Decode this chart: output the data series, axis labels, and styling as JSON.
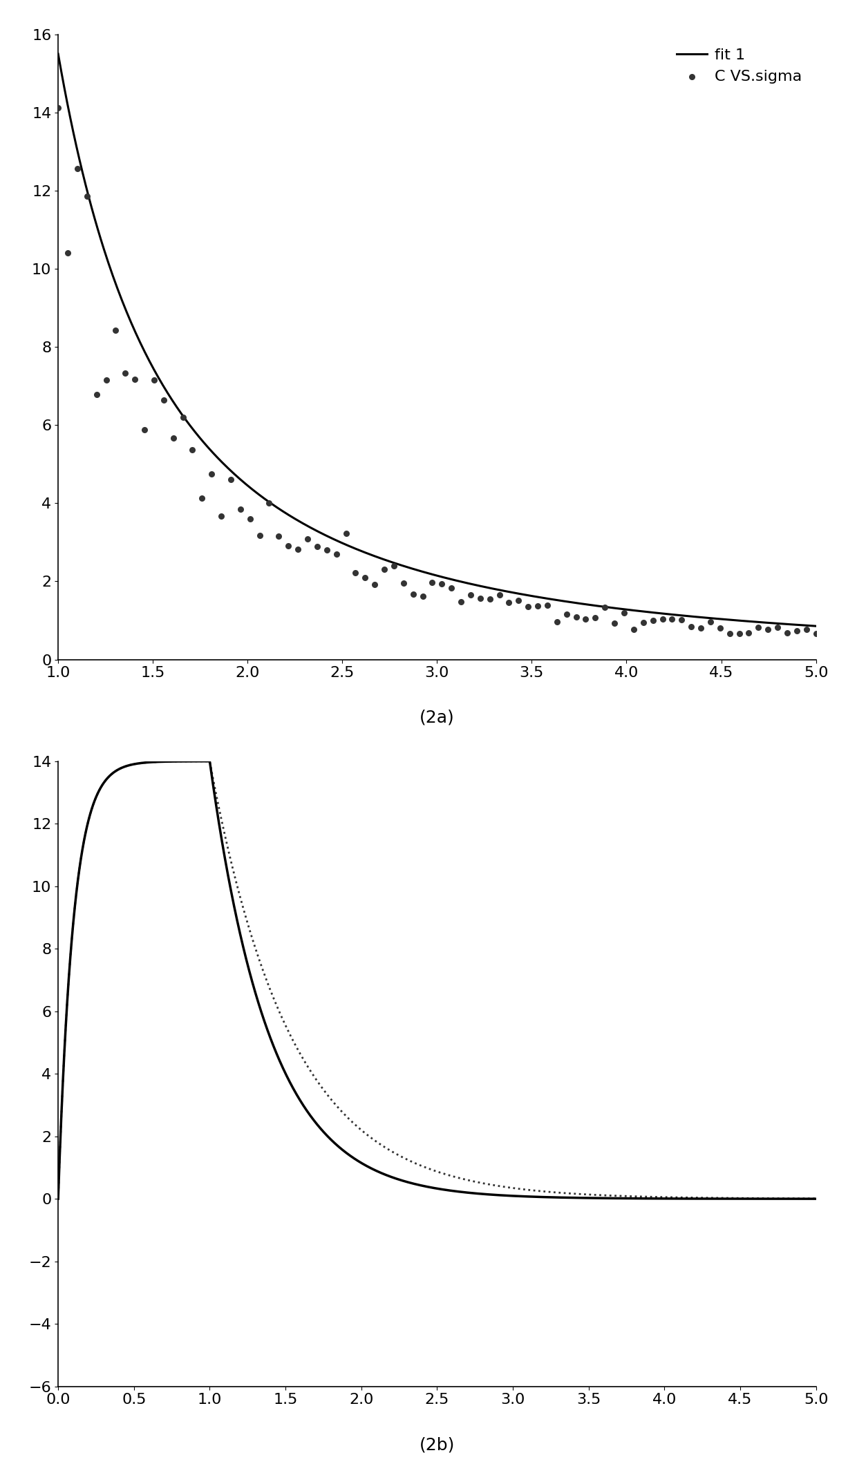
{
  "fig_width": 12.4,
  "fig_height": 21.32,
  "background_color": "#ffffff",
  "plot1": {
    "xlim": [
      1.0,
      5.0
    ],
    "ylim": [
      0,
      16
    ],
    "xticks": [
      1.0,
      1.5,
      2.0,
      2.5,
      3.0,
      3.5,
      4.0,
      4.5,
      5.0
    ],
    "yticks": [
      0,
      2,
      4,
      6,
      8,
      10,
      12,
      14,
      16
    ],
    "xlabel_caption": "(2a)",
    "fit_color": "#000000",
    "dot_color": "#333333",
    "legend_dot_label": "C VS.sigma",
    "legend_line_label": "fit 1",
    "fit_a": 15.5,
    "fit_b": 1.8,
    "dot_a": 13.5,
    "dot_b": 1.85,
    "dot_noise_seed": 42,
    "dot_n": 80
  },
  "plot2": {
    "xlim": [
      0.0,
      5.0
    ],
    "ylim": [
      -6,
      14
    ],
    "xticks": [
      0.0,
      0.5,
      1.0,
      1.5,
      2.0,
      2.5,
      3.0,
      3.5,
      4.0,
      4.5,
      5.0
    ],
    "yticks": [
      -6,
      -4,
      -2,
      0,
      2,
      4,
      6,
      8,
      10,
      12,
      14
    ],
    "xlabel_caption": "(2b)",
    "solid_color": "#000000",
    "dotted_color": "#333333",
    "solid_decay": 2.5,
    "dotted_decay": 1.85,
    "peak_y": 14.0,
    "rise_rate": 10.0
  }
}
